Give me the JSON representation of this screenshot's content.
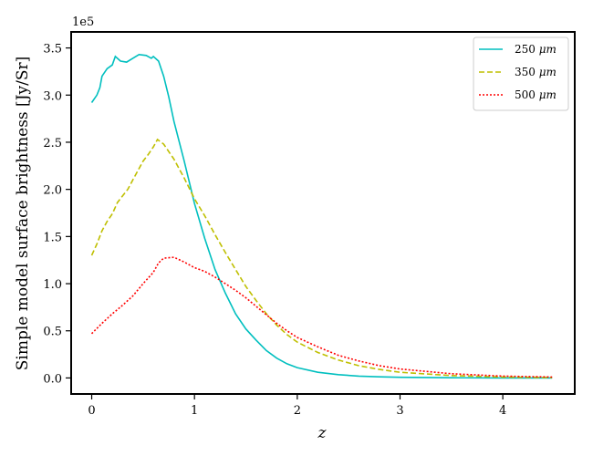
{
  "chart_data": {
    "type": "line",
    "title": "",
    "xlabel": "z",
    "ylabel": "Simple model surface brightness [Jy/Sr]",
    "offset_label": "1e5",
    "xlim": [
      -0.2,
      4.7
    ],
    "ylim": [
      -0.17,
      3.67
    ],
    "xticks": [
      0,
      1,
      2,
      3,
      4
    ],
    "xtick_labels": [
      "0",
      "1",
      "2",
      "3",
      "4"
    ],
    "yticks": [
      0.0,
      0.5,
      1.0,
      1.5,
      2.0,
      2.5,
      3.0,
      3.5
    ],
    "ytick_labels": [
      "0.0",
      "0.5",
      "1.0",
      "1.5",
      "2.0",
      "2.5",
      "3.0",
      "3.5"
    ],
    "y_multiplier": 100000,
    "grid": false,
    "legend_position": "top-right",
    "series": [
      {
        "name": "250 μm",
        "legend_main": "250 ",
        "legend_unit": "μm",
        "color": "#00bfbf",
        "dash": "solid",
        "points": [
          [
            0.0,
            2.92
          ],
          [
            0.05,
            3.0
          ],
          [
            0.08,
            3.08
          ],
          [
            0.1,
            3.2
          ],
          [
            0.15,
            3.28
          ],
          [
            0.2,
            3.32
          ],
          [
            0.23,
            3.41
          ],
          [
            0.28,
            3.36
          ],
          [
            0.34,
            3.35
          ],
          [
            0.4,
            3.39
          ],
          [
            0.46,
            3.43
          ],
          [
            0.53,
            3.42
          ],
          [
            0.58,
            3.39
          ],
          [
            0.6,
            3.41
          ],
          [
            0.65,
            3.36
          ],
          [
            0.7,
            3.2
          ],
          [
            0.75,
            2.98
          ],
          [
            0.8,
            2.72
          ],
          [
            0.9,
            2.3
          ],
          [
            1.0,
            1.85
          ],
          [
            1.1,
            1.48
          ],
          [
            1.2,
            1.15
          ],
          [
            1.3,
            0.9
          ],
          [
            1.4,
            0.68
          ],
          [
            1.5,
            0.52
          ],
          [
            1.6,
            0.4
          ],
          [
            1.7,
            0.29
          ],
          [
            1.8,
            0.21
          ],
          [
            1.9,
            0.15
          ],
          [
            2.0,
            0.11
          ],
          [
            2.2,
            0.06
          ],
          [
            2.4,
            0.035
          ],
          [
            2.6,
            0.02
          ],
          [
            2.8,
            0.012
          ],
          [
            3.0,
            0.007
          ],
          [
            3.5,
            0.002
          ],
          [
            4.0,
            0.0005
          ],
          [
            4.48,
            0.0001
          ]
        ]
      },
      {
        "name": "350 μm",
        "legend_main": "350 ",
        "legend_unit": "μm",
        "color": "#bfbf00",
        "dash": "dashed",
        "points": [
          [
            0.0,
            1.3
          ],
          [
            0.05,
            1.42
          ],
          [
            0.1,
            1.56
          ],
          [
            0.15,
            1.66
          ],
          [
            0.2,
            1.74
          ],
          [
            0.25,
            1.86
          ],
          [
            0.3,
            1.93
          ],
          [
            0.35,
            2.0
          ],
          [
            0.4,
            2.1
          ],
          [
            0.45,
            2.2
          ],
          [
            0.5,
            2.3
          ],
          [
            0.55,
            2.37
          ],
          [
            0.6,
            2.45
          ],
          [
            0.64,
            2.53
          ],
          [
            0.7,
            2.48
          ],
          [
            0.8,
            2.32
          ],
          [
            0.9,
            2.12
          ],
          [
            1.0,
            1.9
          ],
          [
            1.1,
            1.72
          ],
          [
            1.2,
            1.52
          ],
          [
            1.3,
            1.33
          ],
          [
            1.4,
            1.15
          ],
          [
            1.5,
            0.97
          ],
          [
            1.6,
            0.82
          ],
          [
            1.7,
            0.68
          ],
          [
            1.8,
            0.56
          ],
          [
            1.9,
            0.46
          ],
          [
            2.0,
            0.38
          ],
          [
            2.2,
            0.27
          ],
          [
            2.4,
            0.19
          ],
          [
            2.6,
            0.13
          ],
          [
            2.8,
            0.09
          ],
          [
            3.0,
            0.06
          ],
          [
            3.5,
            0.025
          ],
          [
            4.0,
            0.01
          ],
          [
            4.48,
            0.004
          ]
        ]
      },
      {
        "name": "500 μm",
        "legend_main": "500 ",
        "legend_unit": "μm",
        "color": "#ff0000",
        "dash": "dotted",
        "points": [
          [
            0.0,
            0.47
          ],
          [
            0.1,
            0.58
          ],
          [
            0.2,
            0.68
          ],
          [
            0.3,
            0.77
          ],
          [
            0.4,
            0.87
          ],
          [
            0.5,
            1.0
          ],
          [
            0.6,
            1.12
          ],
          [
            0.65,
            1.22
          ],
          [
            0.7,
            1.27
          ],
          [
            0.8,
            1.28
          ],
          [
            0.9,
            1.23
          ],
          [
            1.0,
            1.17
          ],
          [
            1.1,
            1.13
          ],
          [
            1.2,
            1.07
          ],
          [
            1.3,
            1.0
          ],
          [
            1.4,
            0.93
          ],
          [
            1.5,
            0.85
          ],
          [
            1.6,
            0.76
          ],
          [
            1.7,
            0.67
          ],
          [
            1.8,
            0.58
          ],
          [
            1.9,
            0.5
          ],
          [
            2.0,
            0.43
          ],
          [
            2.2,
            0.33
          ],
          [
            2.4,
            0.24
          ],
          [
            2.6,
            0.18
          ],
          [
            2.8,
            0.13
          ],
          [
            3.0,
            0.095
          ],
          [
            3.5,
            0.045
          ],
          [
            4.0,
            0.02
          ],
          [
            4.48,
            0.01
          ]
        ]
      }
    ]
  }
}
